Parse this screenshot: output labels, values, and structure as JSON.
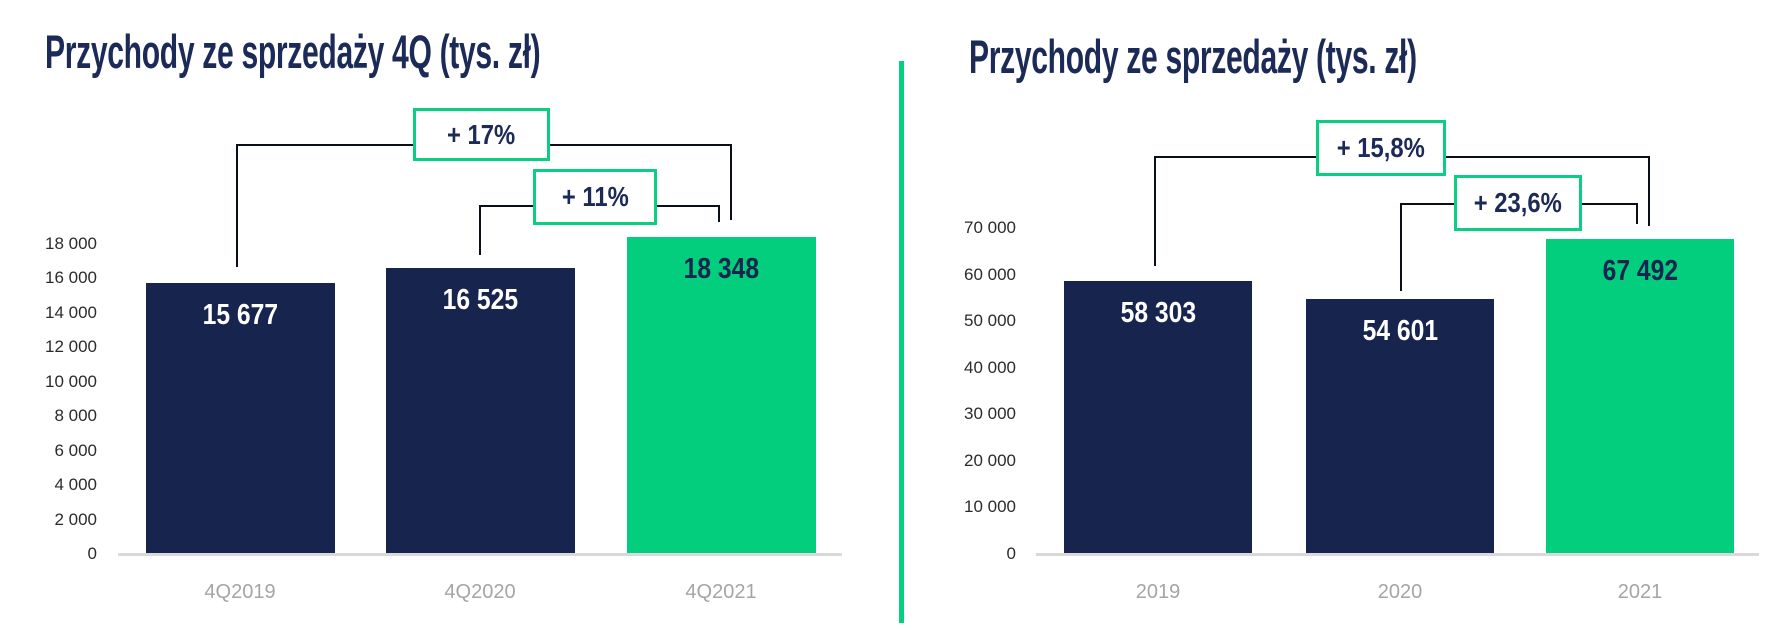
{
  "colors": {
    "navy": "#17254E",
    "green": "#02CE7E",
    "annotation_border_green": "#0ACF83",
    "divider_green": "#05CF80",
    "bracket_line": "#0B0F1A",
    "axis_line": "#D9D9D9",
    "tick_text": "#2B2B2B",
    "category_text": "#A5A5A5",
    "title_text": "#1B2A56",
    "value_on_navy": "#FFFFFF",
    "value_on_green": "#17254E"
  },
  "divider": {
    "kind": "vertical-separator"
  },
  "chart_data": [
    {
      "type": "bar",
      "title": "Przychody ze sprzedaży 4Q (tys. zł)",
      "xlabel": "",
      "ylabel": "",
      "categories": [
        "4Q2019",
        "4Q2020",
        "4Q2021"
      ],
      "values": [
        15677,
        16525,
        18348
      ],
      "value_labels": [
        "15 677",
        "16 525",
        "18 348"
      ],
      "bar_colors": [
        "navy",
        "navy",
        "green"
      ],
      "ylim": [
        0,
        18000
      ],
      "grid": false,
      "legend": null,
      "y_ticks": [
        {
          "value": 0,
          "label": "0"
        },
        {
          "value": 2000,
          "label": "2 000"
        },
        {
          "value": 4000,
          "label": "4 000"
        },
        {
          "value": 6000,
          "label": "6 000"
        },
        {
          "value": 8000,
          "label": "8 000"
        },
        {
          "value": 10000,
          "label": "10 000"
        },
        {
          "value": 12000,
          "label": "12 000"
        },
        {
          "value": 14000,
          "label": "14 000"
        },
        {
          "value": 16000,
          "label": "16 000"
        },
        {
          "value": 18000,
          "label": "18 000"
        }
      ],
      "annotations": [
        {
          "label": "+ 17%",
          "from_category": "4Q2019",
          "to_category": "4Q2021"
        },
        {
          "label": "+ 11%",
          "from_category": "4Q2020",
          "to_category": "4Q2021"
        }
      ]
    },
    {
      "type": "bar",
      "title": "Przychody ze sprzedaży (tys. zł)",
      "xlabel": "",
      "ylabel": "",
      "categories": [
        "2019",
        "2020",
        "2021"
      ],
      "values": [
        58303,
        54601,
        67492
      ],
      "value_labels": [
        "58 303",
        "54 601",
        "67 492"
      ],
      "bar_colors": [
        "navy",
        "navy",
        "green"
      ],
      "ylim": [
        0,
        70000
      ],
      "grid": false,
      "legend": null,
      "y_ticks": [
        {
          "value": 0,
          "label": "0"
        },
        {
          "value": 10000,
          "label": "10 000"
        },
        {
          "value": 20000,
          "label": "20 000"
        },
        {
          "value": 30000,
          "label": "30 000"
        },
        {
          "value": 40000,
          "label": "40 000"
        },
        {
          "value": 50000,
          "label": "50 000"
        },
        {
          "value": 60000,
          "label": "60 000"
        },
        {
          "value": 70000,
          "label": "70 000"
        }
      ],
      "annotations": [
        {
          "label": "+ 15,8%",
          "from_category": "2019",
          "to_category": "2021"
        },
        {
          "label": "+ 23,6%",
          "from_category": "2020",
          "to_category": "2021"
        }
      ]
    }
  ]
}
